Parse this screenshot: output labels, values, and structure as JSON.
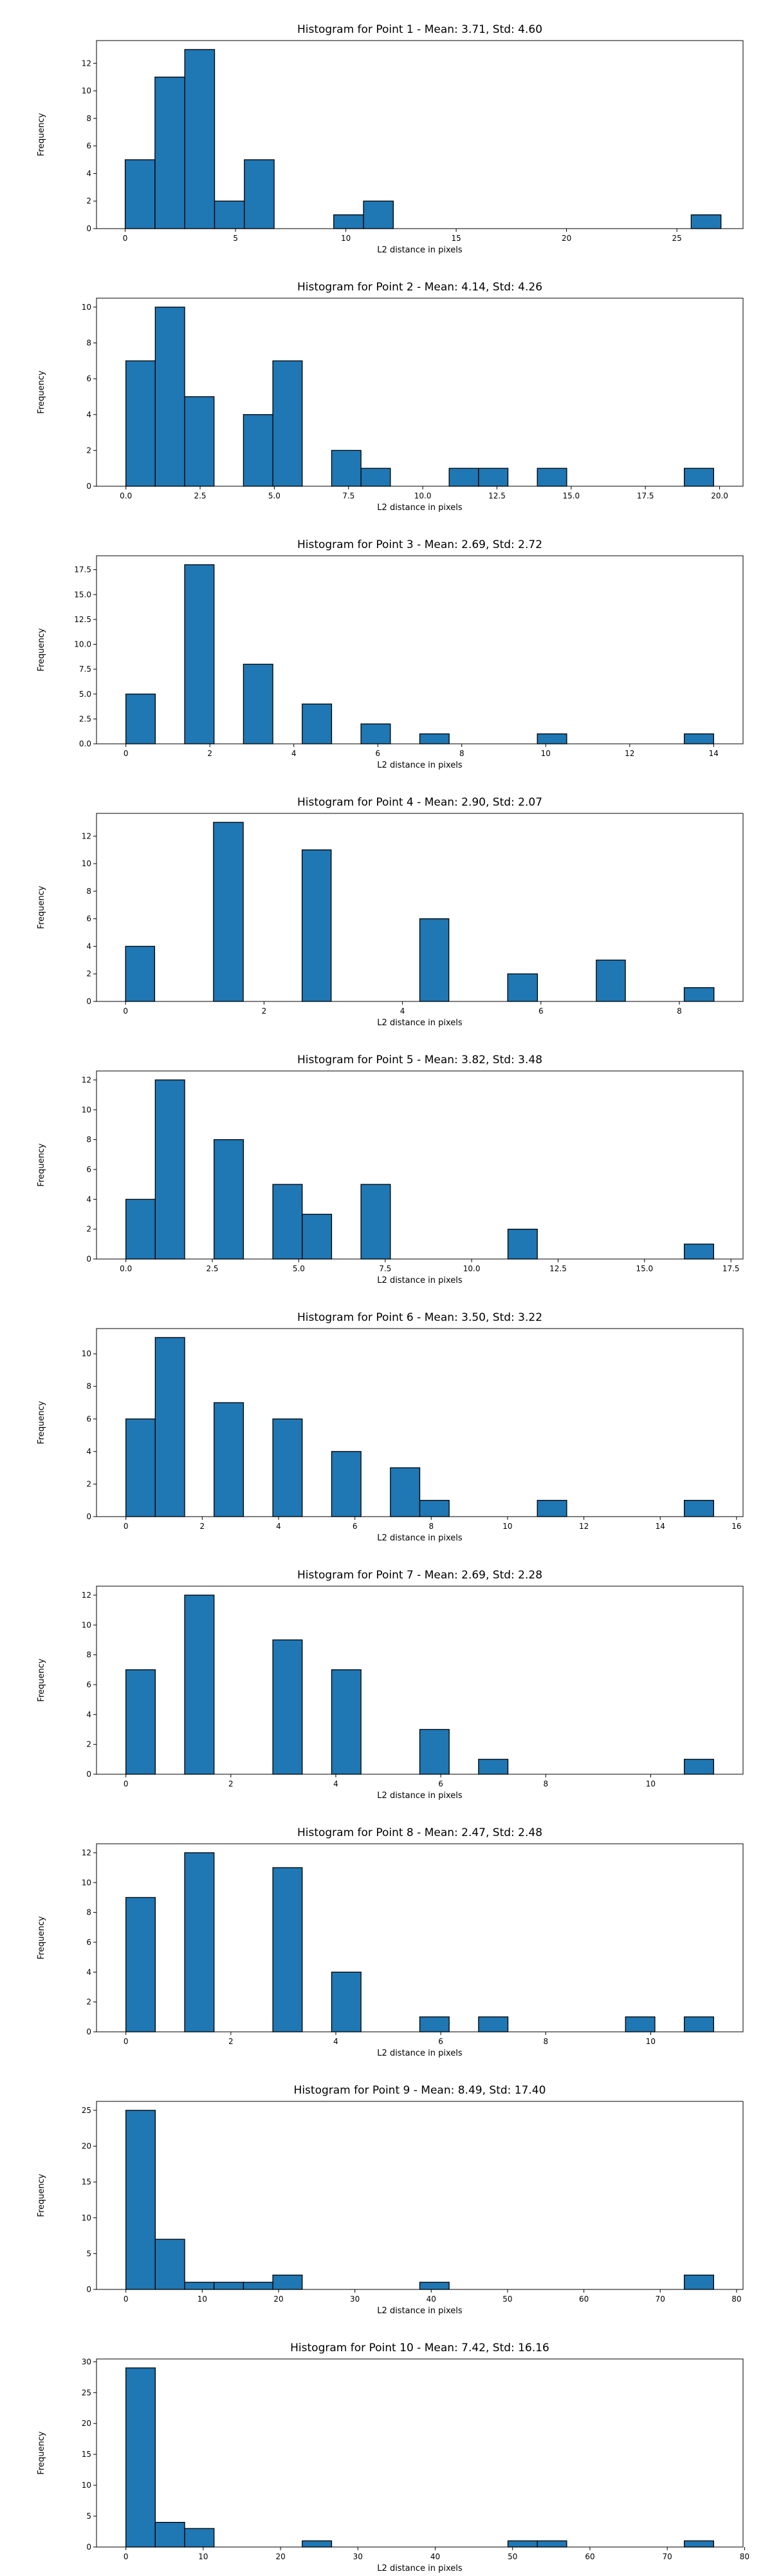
{
  "chart_data": [
    {
      "type": "bar",
      "title": "Histogram for Point 1 - Mean: 3.71, Std: 4.60",
      "xlabel": "L2 distance in pixels",
      "ylabel": "Frequency",
      "xlim": [
        -1.3,
        28.0
      ],
      "ylim": [
        0,
        13.65
      ],
      "xticks": [
        0,
        5,
        10,
        15,
        20,
        25
      ],
      "xtick_labels": [
        "0",
        "5",
        "10",
        "15",
        "20",
        "25"
      ],
      "yticks": [
        0,
        2,
        4,
        6,
        8,
        10,
        12
      ],
      "ytick_labels": [
        "0",
        "2",
        "4",
        "6",
        "8",
        "10",
        "12"
      ],
      "bars": [
        {
          "x0": 0.0,
          "x1": 1.35,
          "count": 5
        },
        {
          "x0": 1.35,
          "x1": 2.7,
          "count": 11
        },
        {
          "x0": 2.7,
          "x1": 4.05,
          "count": 13
        },
        {
          "x0": 4.05,
          "x1": 5.4,
          "count": 2
        },
        {
          "x0": 5.4,
          "x1": 6.75,
          "count": 5
        },
        {
          "x0": 9.45,
          "x1": 10.8,
          "count": 1
        },
        {
          "x0": 10.8,
          "x1": 12.15,
          "count": 2
        },
        {
          "x0": 25.65,
          "x1": 27.0,
          "count": 1
        }
      ]
    },
    {
      "type": "bar",
      "title": "Histogram for Point 2 - Mean: 4.14, Std: 4.26",
      "xlabel": "L2 distance in pixels",
      "ylabel": "Frequency",
      "xlim": [
        -0.99,
        20.79
      ],
      "ylim": [
        0,
        10.5
      ],
      "xticks": [
        0,
        2.5,
        5,
        7.5,
        10,
        12.5,
        15,
        17.5,
        20
      ],
      "xtick_labels": [
        "0.0",
        "2.5",
        "5.0",
        "7.5",
        "10.0",
        "12.5",
        "15.0",
        "17.5",
        "20.0"
      ],
      "yticks": [
        0,
        2,
        4,
        6,
        8,
        10
      ],
      "ytick_labels": [
        "0",
        "2",
        "4",
        "6",
        "8",
        "10"
      ],
      "bars": [
        {
          "x0": 0.0,
          "x1": 0.99,
          "count": 7
        },
        {
          "x0": 0.99,
          "x1": 1.98,
          "count": 10
        },
        {
          "x0": 1.98,
          "x1": 2.97,
          "count": 5
        },
        {
          "x0": 3.96,
          "x1": 4.95,
          "count": 4
        },
        {
          "x0": 4.95,
          "x1": 5.94,
          "count": 7
        },
        {
          "x0": 6.93,
          "x1": 7.92,
          "count": 2
        },
        {
          "x0": 7.92,
          "x1": 8.91,
          "count": 1
        },
        {
          "x0": 10.89,
          "x1": 11.88,
          "count": 1
        },
        {
          "x0": 11.88,
          "x1": 12.87,
          "count": 1
        },
        {
          "x0": 13.86,
          "x1": 14.85,
          "count": 1
        },
        {
          "x0": 18.81,
          "x1": 19.8,
          "count": 1
        }
      ]
    },
    {
      "type": "bar",
      "title": "Histogram for Point 3 - Mean: 2.69, Std: 2.72",
      "xlabel": "L2 distance in pixels",
      "ylabel": "Frequency",
      "xlim": [
        -0.7,
        14.7
      ],
      "ylim": [
        0,
        18.9
      ],
      "xticks": [
        0,
        2,
        4,
        6,
        8,
        10,
        12,
        14
      ],
      "xtick_labels": [
        "0",
        "2",
        "4",
        "6",
        "8",
        "10",
        "12",
        "14"
      ],
      "yticks": [
        0,
        2.5,
        5,
        7.5,
        10,
        12.5,
        15,
        17.5
      ],
      "ytick_labels": [
        "0.0",
        "2.5",
        "5.0",
        "7.5",
        "10.0",
        "12.5",
        "15.0",
        "17.5"
      ],
      "bars": [
        {
          "x0": 0.0,
          "x1": 0.7,
          "count": 5
        },
        {
          "x0": 1.4,
          "x1": 2.1,
          "count": 18
        },
        {
          "x0": 2.8,
          "x1": 3.5,
          "count": 8
        },
        {
          "x0": 4.2,
          "x1": 4.9,
          "count": 4
        },
        {
          "x0": 5.6,
          "x1": 6.3,
          "count": 2
        },
        {
          "x0": 7.0,
          "x1": 7.7,
          "count": 1
        },
        {
          "x0": 9.8,
          "x1": 10.5,
          "count": 1
        },
        {
          "x0": 13.3,
          "x1": 14.0,
          "count": 1
        }
      ]
    },
    {
      "type": "bar",
      "title": "Histogram for Point 4 - Mean: 2.90, Std: 2.07",
      "xlabel": "L2 distance in pixels",
      "ylabel": "Frequency",
      "xlim": [
        -0.42,
        8.92
      ],
      "ylim": [
        0,
        13.65
      ],
      "xticks": [
        0,
        2,
        4,
        6,
        8
      ],
      "xtick_labels": [
        "0",
        "2",
        "4",
        "6",
        "8"
      ],
      "yticks": [
        0,
        2,
        4,
        6,
        8,
        10,
        12
      ],
      "ytick_labels": [
        "0",
        "2",
        "4",
        "6",
        "8",
        "10",
        "12"
      ],
      "bars": [
        {
          "x0": 0.0,
          "x1": 0.42,
          "count": 4
        },
        {
          "x0": 1.27,
          "x1": 1.7,
          "count": 13
        },
        {
          "x0": 2.55,
          "x1": 2.97,
          "count": 11
        },
        {
          "x0": 4.25,
          "x1": 4.67,
          "count": 6
        },
        {
          "x0": 5.52,
          "x1": 5.95,
          "count": 2
        },
        {
          "x0": 6.8,
          "x1": 7.22,
          "count": 3
        },
        {
          "x0": 8.07,
          "x1": 8.5,
          "count": 1
        }
      ]
    },
    {
      "type": "bar",
      "title": "Histogram for Point 5 - Mean: 3.82, Std: 3.48",
      "xlabel": "L2 distance in pixels",
      "ylabel": "Frequency",
      "xlim": [
        -0.85,
        17.85
      ],
      "ylim": [
        0,
        12.6
      ],
      "xticks": [
        0,
        2.5,
        5,
        7.5,
        10,
        12.5,
        15,
        17.5
      ],
      "xtick_labels": [
        "0.0",
        "2.5",
        "5.0",
        "7.5",
        "10.0",
        "12.5",
        "15.0",
        "17.5"
      ],
      "yticks": [
        0,
        2,
        4,
        6,
        8,
        10,
        12
      ],
      "ytick_labels": [
        "0",
        "2",
        "4",
        "6",
        "8",
        "10",
        "12"
      ],
      "bars": [
        {
          "x0": 0.0,
          "x1": 0.85,
          "count": 4
        },
        {
          "x0": 0.85,
          "x1": 1.7,
          "count": 12
        },
        {
          "x0": 2.55,
          "x1": 3.4,
          "count": 8
        },
        {
          "x0": 4.25,
          "x1": 5.1,
          "count": 5
        },
        {
          "x0": 5.1,
          "x1": 5.95,
          "count": 3
        },
        {
          "x0": 6.8,
          "x1": 7.65,
          "count": 5
        },
        {
          "x0": 11.05,
          "x1": 11.9,
          "count": 2
        },
        {
          "x0": 16.15,
          "x1": 17.0,
          "count": 1
        }
      ]
    },
    {
      "type": "bar",
      "title": "Histogram for Point 6 - Mean: 3.50, Std: 3.22",
      "xlabel": "L2 distance in pixels",
      "ylabel": "Frequency",
      "xlim": [
        -0.77,
        16.17
      ],
      "ylim": [
        0,
        11.55
      ],
      "xticks": [
        0,
        2,
        4,
        6,
        8,
        10,
        12,
        14,
        16
      ],
      "xtick_labels": [
        "0",
        "2",
        "4",
        "6",
        "8",
        "10",
        "12",
        "14",
        "16"
      ],
      "yticks": [
        0,
        2,
        4,
        6,
        8,
        10
      ],
      "ytick_labels": [
        "0",
        "2",
        "4",
        "6",
        "8",
        "10"
      ],
      "bars": [
        {
          "x0": 0.0,
          "x1": 0.77,
          "count": 6
        },
        {
          "x0": 0.77,
          "x1": 1.54,
          "count": 11
        },
        {
          "x0": 2.31,
          "x1": 3.08,
          "count": 7
        },
        {
          "x0": 3.85,
          "x1": 4.62,
          "count": 6
        },
        {
          "x0": 5.39,
          "x1": 6.16,
          "count": 4
        },
        {
          "x0": 6.93,
          "x1": 7.7,
          "count": 3
        },
        {
          "x0": 7.7,
          "x1": 8.47,
          "count": 1
        },
        {
          "x0": 10.78,
          "x1": 11.55,
          "count": 1
        },
        {
          "x0": 14.63,
          "x1": 15.4,
          "count": 1
        }
      ]
    },
    {
      "type": "bar",
      "title": "Histogram for Point 7 - Mean: 2.69, Std: 2.28",
      "xlabel": "L2 distance in pixels",
      "ylabel": "Frequency",
      "xlim": [
        -0.56,
        11.76
      ],
      "ylim": [
        0,
        12.6
      ],
      "xticks": [
        0,
        2,
        4,
        6,
        8,
        10
      ],
      "xtick_labels": [
        "0",
        "2",
        "4",
        "6",
        "8",
        "10"
      ],
      "yticks": [
        0,
        2,
        4,
        6,
        8,
        10,
        12
      ],
      "ytick_labels": [
        "0",
        "2",
        "4",
        "6",
        "8",
        "10",
        "12"
      ],
      "bars": [
        {
          "x0": 0.0,
          "x1": 0.56,
          "count": 7
        },
        {
          "x0": 1.12,
          "x1": 1.68,
          "count": 12
        },
        {
          "x0": 2.8,
          "x1": 3.36,
          "count": 9
        },
        {
          "x0": 3.92,
          "x1": 4.48,
          "count": 7
        },
        {
          "x0": 5.6,
          "x1": 6.16,
          "count": 3
        },
        {
          "x0": 6.72,
          "x1": 7.28,
          "count": 1
        },
        {
          "x0": 10.64,
          "x1": 11.2,
          "count": 1
        }
      ]
    },
    {
      "type": "bar",
      "title": "Histogram for Point 8 - Mean: 2.47, Std: 2.48",
      "xlabel": "L2 distance in pixels",
      "ylabel": "Frequency",
      "xlim": [
        -0.56,
        11.76
      ],
      "ylim": [
        0,
        12.6
      ],
      "xticks": [
        0,
        2,
        4,
        6,
        8,
        10
      ],
      "xtick_labels": [
        "0",
        "2",
        "4",
        "6",
        "8",
        "10"
      ],
      "yticks": [
        0,
        2,
        4,
        6,
        8,
        10,
        12
      ],
      "ytick_labels": [
        "0",
        "2",
        "4",
        "6",
        "8",
        "10",
        "12"
      ],
      "bars": [
        {
          "x0": 0.0,
          "x1": 0.56,
          "count": 9
        },
        {
          "x0": 1.12,
          "x1": 1.68,
          "count": 12
        },
        {
          "x0": 2.8,
          "x1": 3.36,
          "count": 11
        },
        {
          "x0": 3.92,
          "x1": 4.48,
          "count": 4
        },
        {
          "x0": 5.6,
          "x1": 6.16,
          "count": 1
        },
        {
          "x0": 6.72,
          "x1": 7.28,
          "count": 1
        },
        {
          "x0": 9.52,
          "x1": 10.08,
          "count": 1
        },
        {
          "x0": 10.64,
          "x1": 11.2,
          "count": 1
        }
      ]
    },
    {
      "type": "bar",
      "title": "Histogram for Point 9 - Mean: 8.49, Std: 17.40",
      "xlabel": "L2 distance in pixels",
      "ylabel": "Frequency",
      "xlim": [
        -3.85,
        80.85
      ],
      "ylim": [
        0,
        26.25
      ],
      "xticks": [
        0,
        10,
        20,
        30,
        40,
        50,
        60,
        70,
        80
      ],
      "xtick_labels": [
        "0",
        "10",
        "20",
        "30",
        "40",
        "50",
        "60",
        "70",
        "80"
      ],
      "yticks": [
        0,
        5,
        10,
        15,
        20,
        25
      ],
      "ytick_labels": [
        "0",
        "5",
        "10",
        "15",
        "20",
        "25"
      ],
      "bars": [
        {
          "x0": 0.0,
          "x1": 3.85,
          "count": 25
        },
        {
          "x0": 3.85,
          "x1": 7.7,
          "count": 7
        },
        {
          "x0": 7.7,
          "x1": 11.55,
          "count": 1
        },
        {
          "x0": 11.55,
          "x1": 15.4,
          "count": 1
        },
        {
          "x0": 15.4,
          "x1": 19.25,
          "count": 1
        },
        {
          "x0": 19.25,
          "x1": 23.1,
          "count": 2
        },
        {
          "x0": 38.5,
          "x1": 42.35,
          "count": 1
        },
        {
          "x0": 73.15,
          "x1": 77.0,
          "count": 2
        }
      ]
    },
    {
      "type": "bar",
      "title": "Histogram for Point 10 - Mean: 7.42, Std: 16.16",
      "xlabel": "L2 distance in pixels",
      "ylabel": "Frequency",
      "xlim": [
        -3.8,
        79.8
      ],
      "ylim": [
        0,
        30.45
      ],
      "xticks": [
        0,
        10,
        20,
        30,
        40,
        50,
        60,
        70,
        80
      ],
      "xtick_labels": [
        "0",
        "10",
        "20",
        "30",
        "40",
        "50",
        "60",
        "70",
        "80"
      ],
      "yticks": [
        0,
        5,
        10,
        15,
        20,
        25,
        30
      ],
      "ytick_labels": [
        "0",
        "5",
        "10",
        "15",
        "20",
        "25",
        "30"
      ],
      "bars": [
        {
          "x0": 0.0,
          "x1": 3.8,
          "count": 29
        },
        {
          "x0": 3.8,
          "x1": 7.6,
          "count": 4
        },
        {
          "x0": 7.6,
          "x1": 11.4,
          "count": 3
        },
        {
          "x0": 22.8,
          "x1": 26.6,
          "count": 1
        },
        {
          "x0": 49.4,
          "x1": 53.2,
          "count": 1
        },
        {
          "x0": 53.2,
          "x1": 57.0,
          "count": 1
        },
        {
          "x0": 72.2,
          "x1": 76.0,
          "count": 1
        }
      ]
    }
  ]
}
